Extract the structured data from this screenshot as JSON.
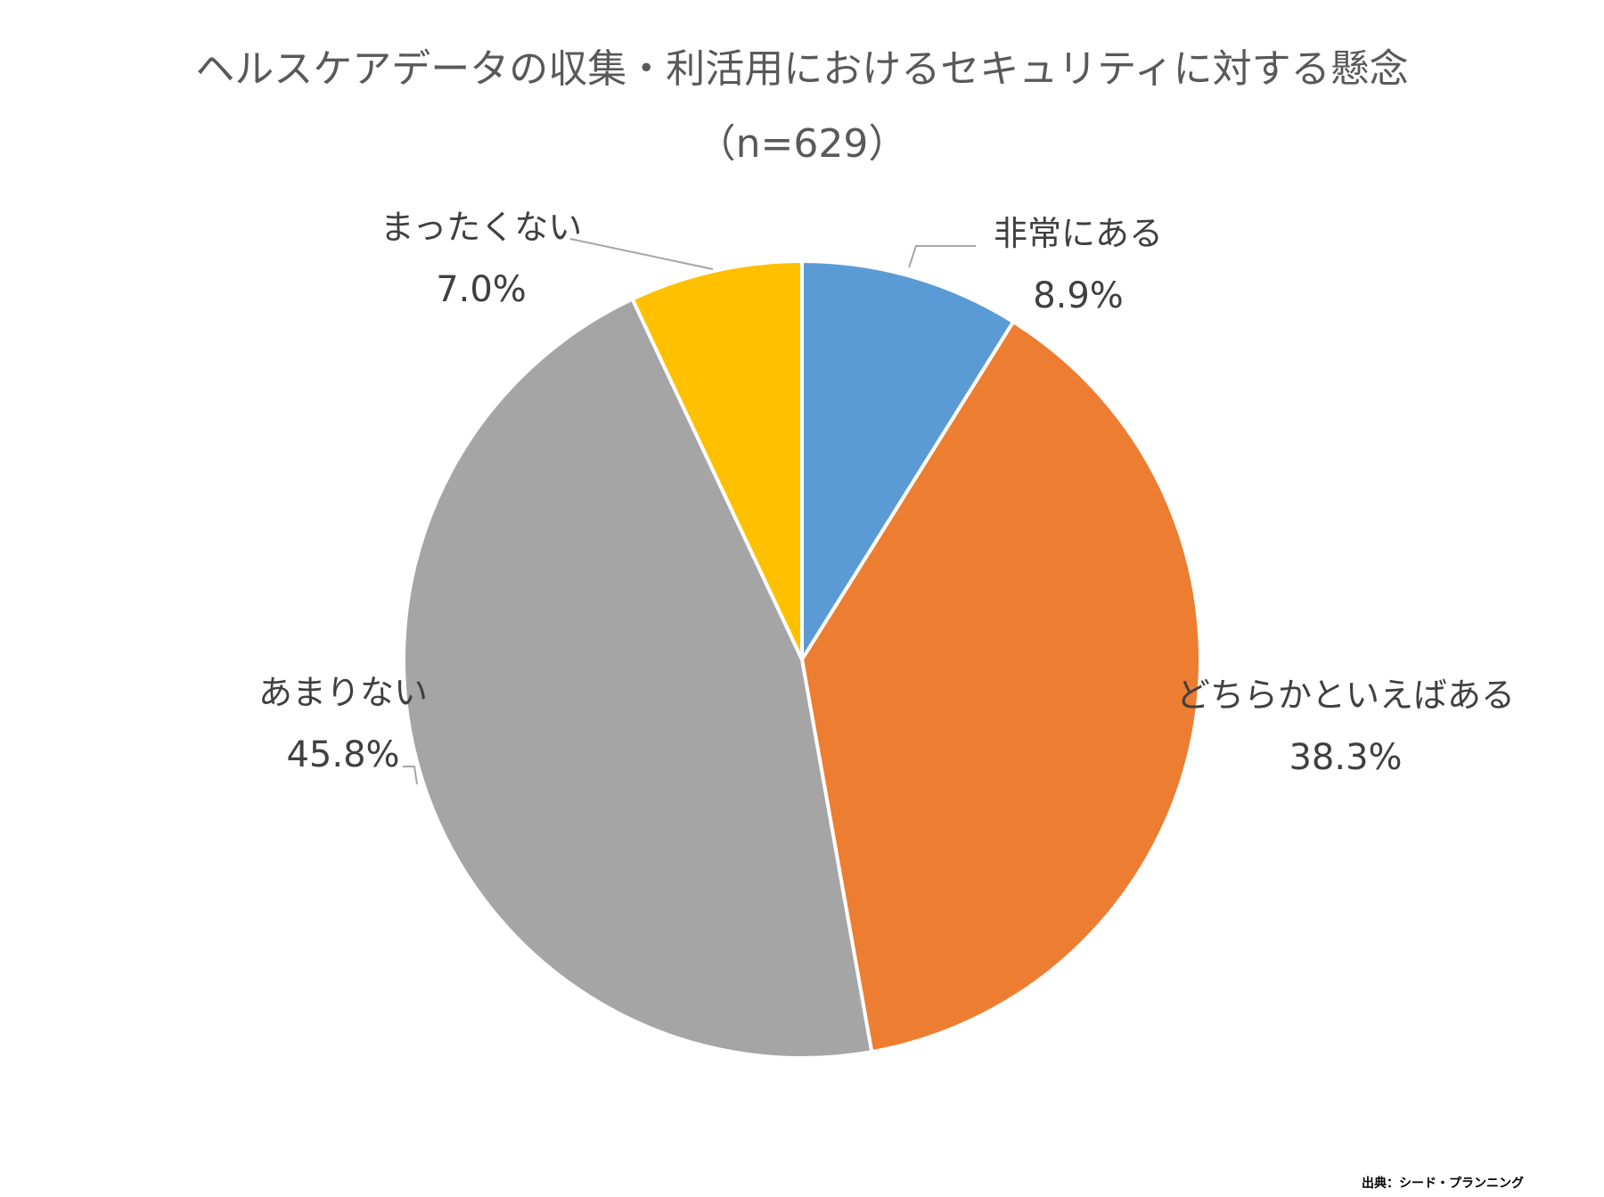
{
  "chart_data": {
    "type": "pie",
    "title": "ヘルスケアデータの収集・利活用におけるセキュリティに対する懸念",
    "subtitle": "（n=629）",
    "slices": [
      {
        "label": "非常にある",
        "value": 8.9,
        "display": "8.9%",
        "color": "#5B9BD5"
      },
      {
        "label": "どちらかといえばある",
        "value": 38.3,
        "display": "38.3%",
        "color": "#ED7D31"
      },
      {
        "label": "あまりない",
        "value": 45.8,
        "display": "45.8%",
        "color": "#A5A5A5"
      },
      {
        "label": "まったくない",
        "value": 7.0,
        "display": "7.0%",
        "color": "#FFC000"
      }
    ],
    "legend": "none",
    "start_angle": "12 o'clock, clockwise"
  },
  "source": "出典：シード・プランニング"
}
